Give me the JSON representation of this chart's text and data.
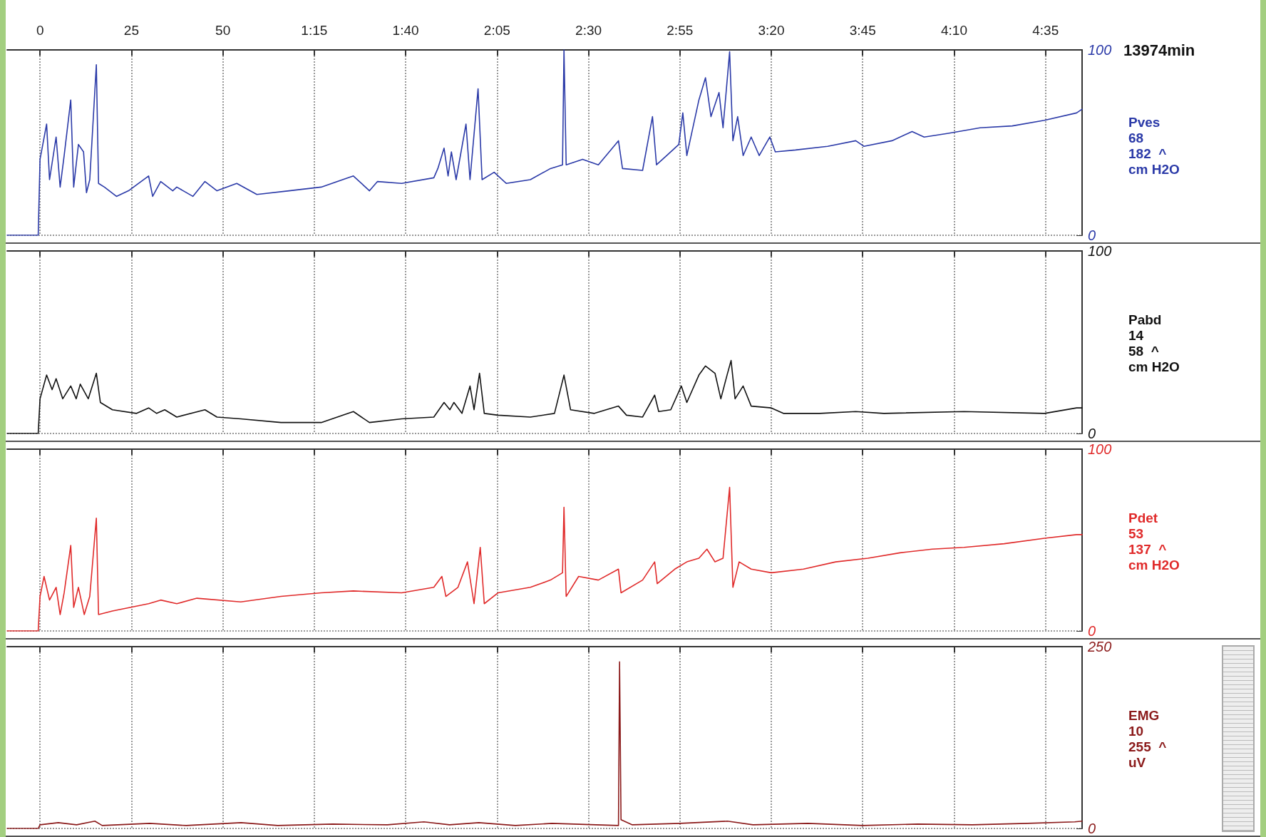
{
  "chart_data": [
    {
      "type": "line",
      "xlabel": "13974min",
      "x": [
        -9,
        -0.5,
        0,
        1.8,
        2.6,
        4.4,
        5.5,
        6.6,
        8.4,
        9.2,
        10.5,
        11.9,
        12.7,
        13.6,
        15.4,
        16.0,
        17.6,
        20.9,
        24.2,
        29.7,
        30.8,
        33.0,
        36.3,
        37.4,
        41.8,
        45.1,
        48.4,
        53.8,
        59.3,
        68.1,
        76.9,
        85.7,
        90.1,
        92.3,
        98.9,
        107.7,
        108.8,
        110.5,
        111.6,
        112.5,
        113.8,
        116.5,
        117.6,
        119.8,
        120.9,
        124.2,
        127.5,
        134.1,
        139.6,
        142.9,
        143.3,
        143.9,
        148.4,
        152.7,
        158.2,
        159.3,
        164.8,
        167.5,
        168.6,
        171.4,
        174.7,
        175.8,
        176.9,
        180.2,
        182.0,
        183.5,
        185.7,
        186.8,
        188.6,
        189.5,
        190.8,
        192.3,
        194.5,
        196.7,
        199.6,
        201.1,
        206.6,
        215.4,
        223.1,
        225.3,
        233.0,
        238.5,
        241.8,
        248.4,
        257.1,
        265.9,
        274.7,
        283.5,
        285
      ],
      "series": [
        {
          "name": "Pves",
          "color": "#2b3aa8",
          "values": [
            0,
            0,
            41,
            60,
            30,
            53,
            26,
            43,
            73,
            26,
            49,
            45,
            23,
            30,
            92,
            28,
            26,
            21,
            24,
            32,
            21,
            29,
            24,
            26,
            21,
            29,
            24,
            28,
            22,
            24,
            26,
            32,
            24,
            29,
            28,
            31,
            36,
            47,
            32,
            45,
            30,
            60,
            30,
            79,
            30,
            34,
            28,
            30,
            36,
            38,
            100,
            38,
            41,
            38,
            51,
            36,
            35,
            64,
            38,
            43,
            49,
            66,
            43,
            73,
            85,
            64,
            77,
            58,
            99,
            51,
            64,
            43,
            53,
            43,
            53,
            45,
            46,
            48,
            51,
            48,
            51,
            56,
            53,
            55,
            58,
            59,
            62,
            66,
            68
          ]
        }
      ],
      "annotations": [
        "68",
        "182  ^",
        "cm H2O"
      ],
      "xlim": [
        -9,
        285
      ],
      "xticks": [
        0,
        25,
        50,
        {
          "value": 75,
          "label": "1:15"
        },
        {
          "value": 100,
          "label": "1:40"
        },
        {
          "value": 125,
          "label": "2:05"
        },
        {
          "value": 150,
          "label": "2:30"
        },
        {
          "value": 175,
          "label": "2:55"
        },
        {
          "value": 200,
          "label": "3:20"
        },
        {
          "value": 225,
          "label": "3:45"
        },
        {
          "value": 250,
          "label": "4:10"
        },
        {
          "value": 275,
          "label": "4:35"
        }
      ],
      "ylim": [
        0,
        100
      ],
      "yticks": [
        0,
        100
      ],
      "grid": true
    },
    {
      "type": "line",
      "x": [
        -9,
        -0.5,
        0,
        1.8,
        3.3,
        4.4,
        6.2,
        8.4,
        9.9,
        11.0,
        13.2,
        15.4,
        16.5,
        19.8,
        26.4,
        29.7,
        31.9,
        34.1,
        37.4,
        45.1,
        48.4,
        54.9,
        65.9,
        76.9,
        85.7,
        90.1,
        98.9,
        107.7,
        110.5,
        112.1,
        113.2,
        115.4,
        117.6,
        118.7,
        120.2,
        121.5,
        125.3,
        134.1,
        140.7,
        143.3,
        145.1,
        151.6,
        158.2,
        160.4,
        164.8,
        168.1,
        169.2,
        172.5,
        175.4,
        176.9,
        180.2,
        182.0,
        184.6,
        186.2,
        187.9,
        189.0,
        190.1,
        192.3,
        194.5,
        200.0,
        203.3,
        213.2,
        223.1,
        230.8,
        252.7,
        274.7,
        283.5,
        285
      ],
      "series": [
        {
          "name": "Pabd",
          "color": "#111111",
          "values": [
            0,
            0,
            19,
            32,
            24,
            30,
            19,
            26,
            19,
            27,
            19,
            33,
            17,
            13,
            11,
            14,
            11,
            13,
            9,
            13,
            9,
            8,
            6,
            6,
            12,
            6,
            8,
            9,
            17,
            13,
            17,
            11,
            26,
            13,
            33,
            11,
            10,
            9,
            11,
            32,
            13,
            11,
            15,
            10,
            9,
            21,
            12,
            13,
            26,
            17,
            32,
            37,
            33,
            19,
            32,
            40,
            19,
            26,
            15,
            14,
            11,
            11,
            12,
            11,
            12,
            11,
            14,
            14
          ]
        }
      ],
      "annotations": [
        "14",
        "58  ^",
        "cm H2O"
      ],
      "xlim": [
        -9,
        285
      ],
      "ylim": [
        0,
        100
      ],
      "yticks": [
        0,
        100
      ],
      "grid": true,
      "tick_labels": "y"
    },
    {
      "type": "line",
      "x": [
        -9,
        -0.5,
        0,
        1.1,
        2.6,
        4.4,
        5.5,
        6.6,
        8.4,
        9.2,
        10.5,
        12.1,
        13.6,
        15.4,
        16.0,
        19.8,
        29.7,
        33.0,
        37.4,
        42.9,
        54.9,
        65.9,
        76.9,
        85.7,
        98.9,
        107.7,
        109.9,
        111.0,
        114.3,
        116.9,
        118.7,
        120.4,
        121.5,
        125.3,
        134.1,
        139.6,
        142.9,
        143.3,
        143.9,
        147.3,
        152.7,
        158.2,
        158.9,
        164.8,
        168.1,
        168.8,
        173.6,
        176.9,
        180.2,
        182.4,
        184.6,
        186.8,
        188.6,
        189.5,
        191.2,
        194.5,
        200.0,
        208.8,
        217.6,
        226.4,
        235.2,
        244.0,
        252.7,
        263.7,
        274.7,
        283.5,
        285
      ],
      "series": [
        {
          "name": "Pdet",
          "color": "#e02a2a",
          "values": [
            0,
            0,
            19,
            30,
            17,
            24,
            9,
            21,
            47,
            13,
            24,
            9,
            19,
            62,
            9,
            11,
            15,
            17,
            15,
            18,
            16,
            19,
            21,
            22,
            21,
            24,
            30,
            19,
            24,
            38,
            15,
            46,
            15,
            21,
            24,
            28,
            32,
            68,
            19,
            30,
            28,
            34,
            21,
            28,
            38,
            26,
            34,
            38,
            40,
            45,
            38,
            40,
            79,
            24,
            38,
            34,
            32,
            34,
            38,
            40,
            43,
            45,
            46,
            48,
            51,
            53,
            53
          ]
        }
      ],
      "annotations": [
        "53",
        "137  ^",
        "cm H2O"
      ],
      "xlim": [
        -9,
        285
      ],
      "ylim": [
        0,
        100
      ],
      "yticks": [
        0,
        100
      ],
      "grid": true,
      "tick_labels": "y"
    },
    {
      "type": "line",
      "x": [
        -9,
        -0.5,
        0,
        5,
        10,
        15,
        17,
        30,
        40,
        55,
        65,
        80,
        95,
        105,
        112,
        120,
        130,
        140,
        152,
        158.2,
        158.5,
        158.9,
        162,
        175,
        188,
        195,
        210,
        225,
        240,
        255,
        270,
        283,
        285
      ],
      "series": [
        {
          "name": "EMG",
          "color": "#8b1a1a",
          "values": [
            0,
            0,
            5,
            8,
            5,
            10,
            4,
            7,
            4,
            8,
            4,
            6,
            5,
            9,
            5,
            8,
            4,
            7,
            5,
            4,
            229,
            12,
            5,
            7,
            10,
            5,
            7,
            4,
            6,
            5,
            7,
            9,
            10
          ]
        }
      ],
      "annotations": [
        "10",
        "255  ^",
        "uV"
      ],
      "xlim": [
        -9,
        285
      ],
      "ylim": [
        0,
        250
      ],
      "yticks": [
        0,
        250
      ],
      "grid": true,
      "tick_labels": "y"
    }
  ]
}
